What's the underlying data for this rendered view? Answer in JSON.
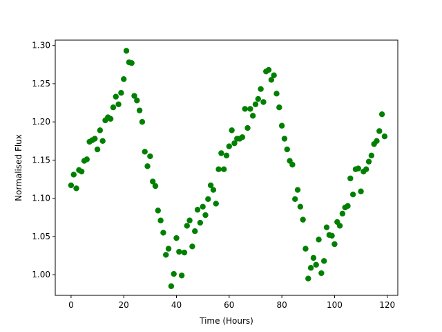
{
  "chart_data": {
    "type": "scatter",
    "title": "",
    "xlabel": "Time (Hours)",
    "ylabel": "Normalised Flux",
    "xlim": [
      -6,
      124
    ],
    "ylim": [
      0.973,
      1.307
    ],
    "xticks": [
      0,
      20,
      40,
      60,
      80,
      100,
      120
    ],
    "yticks": [
      1.0,
      1.05,
      1.1,
      1.15,
      1.2,
      1.25,
      1.3
    ],
    "ytick_labels": [
      "1.00",
      "1.05",
      "1.10",
      "1.15",
      "1.20",
      "1.25",
      "1.30"
    ],
    "grid": false,
    "marker_color": "#008000",
    "series": [
      {
        "points": [
          [
            0,
            1.117
          ],
          [
            1,
            1.131
          ],
          [
            2,
            1.113
          ],
          [
            3,
            1.137
          ],
          [
            4,
            1.135
          ],
          [
            5,
            1.149
          ],
          [
            6,
            1.151
          ],
          [
            7,
            1.174
          ],
          [
            8,
            1.176
          ],
          [
            9,
            1.178
          ],
          [
            10,
            1.164
          ],
          [
            11,
            1.189
          ],
          [
            12,
            1.175
          ],
          [
            13,
            1.202
          ],
          [
            14,
            1.206
          ],
          [
            15,
            1.204
          ],
          [
            16,
            1.219
          ],
          [
            17,
            1.233
          ],
          [
            18,
            1.223
          ],
          [
            19,
            1.238
          ],
          [
            20,
            1.256
          ],
          [
            21,
            1.293
          ],
          [
            22,
            1.278
          ],
          [
            23,
            1.277
          ],
          [
            24,
            1.234
          ],
          [
            25,
            1.228
          ],
          [
            26,
            1.215
          ],
          [
            27,
            1.2
          ],
          [
            28,
            1.161
          ],
          [
            29,
            1.142
          ],
          [
            30,
            1.155
          ],
          [
            31,
            1.122
          ],
          [
            32,
            1.116
          ],
          [
            33,
            1.084
          ],
          [
            34,
            1.071
          ],
          [
            35,
            1.055
          ],
          [
            36,
            1.026
          ],
          [
            37,
            1.034
          ],
          [
            38,
            0.985
          ],
          [
            39,
            1.001
          ],
          [
            40,
            1.048
          ],
          [
            41,
            1.03
          ],
          [
            42,
            0.999
          ],
          [
            43,
            1.029
          ],
          [
            44,
            1.064
          ],
          [
            45,
            1.071
          ],
          [
            46,
            1.037
          ],
          [
            47,
            1.057
          ],
          [
            48,
            1.085
          ],
          [
            49,
            1.068
          ],
          [
            50,
            1.089
          ],
          [
            51,
            1.078
          ],
          [
            52,
            1.099
          ],
          [
            53,
            1.117
          ],
          [
            54,
            1.111
          ],
          [
            55,
            1.093
          ],
          [
            56,
            1.138
          ],
          [
            57,
            1.159
          ],
          [
            58,
            1.138
          ],
          [
            59,
            1.156
          ],
          [
            60,
            1.168
          ],
          [
            61,
            1.189
          ],
          [
            62,
            1.172
          ],
          [
            63,
            1.178
          ],
          [
            64,
            1.178
          ],
          [
            65,
            1.18
          ],
          [
            66,
            1.217
          ],
          [
            67,
            1.192
          ],
          [
            68,
            1.217
          ],
          [
            69,
            1.208
          ],
          [
            70,
            1.223
          ],
          [
            71,
            1.23
          ],
          [
            72,
            1.243
          ],
          [
            73,
            1.226
          ],
          [
            74,
            1.266
          ],
          [
            75,
            1.268
          ],
          [
            76,
            1.255
          ],
          [
            77,
            1.261
          ],
          [
            78,
            1.237
          ],
          [
            79,
            1.219
          ],
          [
            80,
            1.195
          ],
          [
            81,
            1.178
          ],
          [
            82,
            1.164
          ],
          [
            83,
            1.149
          ],
          [
            84,
            1.144
          ],
          [
            85,
            1.099
          ],
          [
            86,
            1.111
          ],
          [
            87,
            1.089
          ],
          [
            88,
            1.072
          ],
          [
            89,
            1.034
          ],
          [
            90,
            0.995
          ],
          [
            91,
            1.009
          ],
          [
            92,
            1.022
          ],
          [
            93,
            1.013
          ],
          [
            94,
            1.046
          ],
          [
            95,
            1.002
          ],
          [
            96,
            1.018
          ],
          [
            97,
            1.062
          ],
          [
            98,
            1.052
          ],
          [
            99,
            1.051
          ],
          [
            100,
            1.04
          ],
          [
            101,
            1.069
          ],
          [
            102,
            1.064
          ],
          [
            103,
            1.08
          ],
          [
            104,
            1.088
          ],
          [
            105,
            1.09
          ],
          [
            106,
            1.126
          ],
          [
            107,
            1.105
          ],
          [
            108,
            1.138
          ],
          [
            109,
            1.139
          ],
          [
            110,
            1.109
          ],
          [
            111,
            1.135
          ],
          [
            112,
            1.138
          ],
          [
            113,
            1.148
          ],
          [
            114,
            1.156
          ],
          [
            115,
            1.171
          ],
          [
            116,
            1.175
          ],
          [
            117,
            1.188
          ],
          [
            118,
            1.21
          ],
          [
            119,
            1.181
          ]
        ]
      }
    ]
  }
}
